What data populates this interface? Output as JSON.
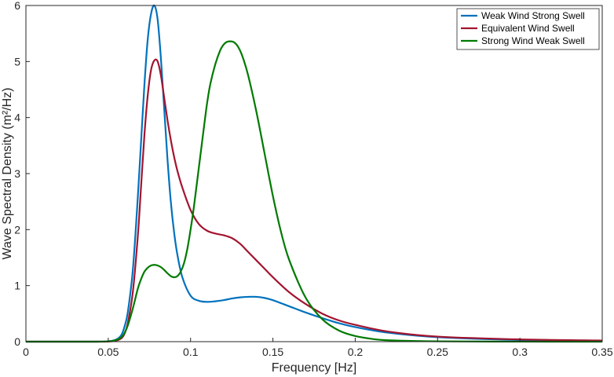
{
  "chart_data": {
    "type": "line",
    "title": "",
    "xlabel": "Frequency [Hz]",
    "ylabel": "Wave Spectral Density  (m²/Hz)",
    "xlim": [
      0,
      0.35
    ],
    "ylim": [
      0,
      6
    ],
    "xticks": [
      0,
      0.05,
      0.1,
      0.15,
      0.2,
      0.25,
      0.3,
      0.35
    ],
    "xtick_labels": [
      "0",
      "0.05",
      "0.1",
      "0.15",
      "0.2",
      "0.25",
      "0.3",
      "0.35"
    ],
    "yticks": [
      0,
      1,
      2,
      3,
      4,
      5,
      6
    ],
    "ytick_labels": [
      "0",
      "1",
      "2",
      "3",
      "4",
      "5",
      "6"
    ],
    "grid": false,
    "legend_position": "top-right",
    "series": [
      {
        "name": "Weak Wind Strong Swell",
        "color": "#0072bd",
        "x": [
          0,
          0.04,
          0.05,
          0.055,
          0.058,
          0.06,
          0.062,
          0.065,
          0.068,
          0.07,
          0.072,
          0.074,
          0.076,
          0.078,
          0.08,
          0.082,
          0.084,
          0.086,
          0.088,
          0.09,
          0.092,
          0.095,
          0.1,
          0.105,
          0.11,
          0.115,
          0.12,
          0.125,
          0.13,
          0.135,
          0.14,
          0.145,
          0.15,
          0.16,
          0.17,
          0.18,
          0.19,
          0.2,
          0.22,
          0.25,
          0.3,
          0.35
        ],
        "y": [
          0,
          0,
          0.005,
          0.04,
          0.12,
          0.28,
          0.55,
          1.3,
          2.6,
          3.6,
          4.6,
          5.4,
          5.85,
          6.0,
          5.75,
          5.05,
          4.15,
          3.25,
          2.5,
          1.95,
          1.55,
          1.15,
          0.82,
          0.73,
          0.71,
          0.72,
          0.74,
          0.77,
          0.79,
          0.8,
          0.8,
          0.78,
          0.74,
          0.63,
          0.52,
          0.42,
          0.33,
          0.26,
          0.16,
          0.08,
          0.03,
          0.012
        ]
      },
      {
        "name": "Equivalent Wind Swell",
        "color": "#a2142f",
        "x": [
          0,
          0.04,
          0.05,
          0.055,
          0.058,
          0.06,
          0.062,
          0.065,
          0.068,
          0.07,
          0.072,
          0.074,
          0.076,
          0.078,
          0.08,
          0.082,
          0.084,
          0.086,
          0.088,
          0.09,
          0.092,
          0.095,
          0.1,
          0.105,
          0.11,
          0.115,
          0.12,
          0.125,
          0.13,
          0.135,
          0.14,
          0.145,
          0.15,
          0.16,
          0.17,
          0.18,
          0.19,
          0.2,
          0.22,
          0.25,
          0.3,
          0.35
        ],
        "y": [
          0,
          0,
          0.002,
          0.02,
          0.06,
          0.15,
          0.35,
          0.9,
          1.9,
          2.8,
          3.7,
          4.4,
          4.85,
          5.02,
          5.0,
          4.75,
          4.35,
          3.95,
          3.6,
          3.3,
          3.05,
          2.75,
          2.35,
          2.1,
          1.98,
          1.93,
          1.9,
          1.85,
          1.75,
          1.6,
          1.45,
          1.3,
          1.15,
          0.88,
          0.67,
          0.5,
          0.38,
          0.3,
          0.18,
          0.09,
          0.04,
          0.02
        ]
      },
      {
        "name": "Strong Wind Weak Swell",
        "color": "#007a00",
        "x": [
          0,
          0.04,
          0.05,
          0.055,
          0.058,
          0.06,
          0.062,
          0.065,
          0.068,
          0.07,
          0.072,
          0.074,
          0.076,
          0.078,
          0.08,
          0.082,
          0.084,
          0.086,
          0.088,
          0.09,
          0.092,
          0.094,
          0.096,
          0.098,
          0.1,
          0.102,
          0.105,
          0.108,
          0.11,
          0.112,
          0.115,
          0.118,
          0.12,
          0.122,
          0.124,
          0.126,
          0.128,
          0.13,
          0.132,
          0.135,
          0.14,
          0.145,
          0.15,
          0.155,
          0.16,
          0.17,
          0.18,
          0.19,
          0.2,
          0.21,
          0.22,
          0.25,
          0.3,
          0.35
        ],
        "y": [
          0,
          0,
          0.005,
          0.03,
          0.08,
          0.16,
          0.3,
          0.6,
          0.95,
          1.12,
          1.25,
          1.32,
          1.36,
          1.37,
          1.36,
          1.33,
          1.28,
          1.22,
          1.17,
          1.15,
          1.17,
          1.25,
          1.4,
          1.65,
          2.0,
          2.4,
          3.1,
          3.8,
          4.25,
          4.6,
          4.95,
          5.2,
          5.3,
          5.35,
          5.36,
          5.35,
          5.3,
          5.2,
          5.05,
          4.75,
          4.1,
          3.35,
          2.6,
          1.95,
          1.45,
          0.78,
          0.4,
          0.2,
          0.1,
          0.05,
          0.025,
          0.006,
          0.001,
          0
        ]
      }
    ]
  }
}
